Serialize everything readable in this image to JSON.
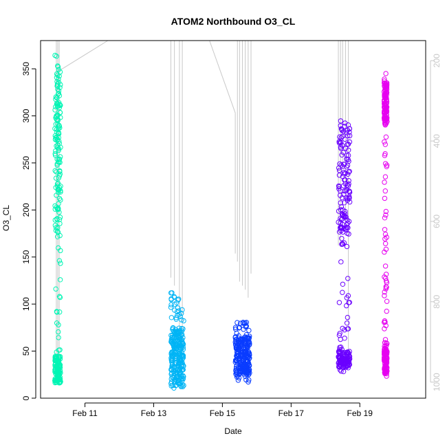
{
  "chart_data": {
    "type": "scatter",
    "title": "ATOM2 Northbound O3_CL",
    "xlabel": "Date",
    "ylabel": "O3_CL",
    "x_unit": "days",
    "xlim": [
      "2017-02-09T17:00",
      "2017-02-20T22:00"
    ],
    "ylim": [
      0,
      380
    ],
    "y_ticks": [
      0,
      50,
      100,
      150,
      200,
      250,
      300,
      350
    ],
    "x_ticks": [
      {
        "date": "2017-02-11T00:00",
        "label": "Feb 11"
      },
      {
        "date": "2017-02-13T00:00",
        "label": "Feb 13"
      },
      {
        "date": "2017-02-15T00:00",
        "label": "Feb 15"
      },
      {
        "date": "2017-02-17T00:00",
        "label": "Feb 17"
      },
      {
        "date": "2017-02-19T00:00",
        "label": "Feb 19"
      }
    ],
    "secondary_y": {
      "side": "right",
      "reversed": true,
      "lim": [
        1040,
        150
      ],
      "ticks": [
        200,
        400,
        600,
        800,
        1000
      ],
      "color": "#c8c8c8"
    },
    "grid": false,
    "series": [
      {
        "color": "#00f5b4",
        "x_range": [
          "2017-02-10T03:00",
          "2017-02-10T07:00"
        ],
        "y_range": [
          12,
          365
        ],
        "dense": [
          [
            16,
            45
          ],
          [
            170,
            350
          ]
        ]
      },
      {
        "color": "#00b4f5",
        "x_range": [
          "2017-02-13T12:00",
          "2017-02-13T21:00"
        ],
        "y_range": [
          10,
          113
        ],
        "dense": [
          [
            12,
            75
          ]
        ]
      },
      {
        "color": "#0a3cff",
        "x_range": [
          "2017-02-15T09:00",
          "2017-02-15T19:00"
        ],
        "y_range": [
          17,
          81
        ],
        "dense": [
          [
            25,
            65
          ]
        ]
      },
      {
        "color": "#6a00ff",
        "x_range": [
          "2017-02-18T09:00",
          "2017-02-18T17:00"
        ],
        "y_range": [
          18,
          297
        ],
        "dense": [
          [
            32,
            50
          ],
          [
            175,
            295
          ]
        ]
      },
      {
        "color": "#e600f0",
        "x_range": [
          "2017-02-19T17:00",
          "2017-02-19T19:00"
        ],
        "y_range": [
          20,
          360
        ],
        "dense": [
          [
            25,
            60
          ],
          [
            290,
            335
          ]
        ]
      }
    ],
    "profile_lines": {
      "color": "#c8c8c8",
      "axis": "secondary_y",
      "segments": [
        {
          "x": "2017-02-10T04:00",
          "y_from": 150,
          "y_to": 1000
        },
        {
          "x": "2017-02-10T05:00",
          "y_from": 150,
          "y_to": 980
        },
        {
          "x": "2017-02-10T06:00",
          "y_from": 150,
          "y_to": 1000
        },
        {
          "x": "2017-02-13T12:00",
          "y_from": 150,
          "y_to": 740
        },
        {
          "x": "2017-02-13T14:30",
          "y_from": 150,
          "y_to": 760
        },
        {
          "x": "2017-02-13T18:00",
          "y_from": 150,
          "y_to": 880
        },
        {
          "x": "2017-02-13T20:00",
          "y_from": 150,
          "y_to": 920
        },
        {
          "x": "2017-02-15T09:00",
          "y_from": 330,
          "y_to": 680
        },
        {
          "x": "2017-02-15T10:30",
          "y_from": 150,
          "y_to": 700
        },
        {
          "x": "2017-02-15T12:00",
          "y_from": 150,
          "y_to": 750
        },
        {
          "x": "2017-02-15T14:00",
          "y_from": 150,
          "y_to": 760
        },
        {
          "x": "2017-02-15T16:00",
          "y_from": 150,
          "y_to": 770
        },
        {
          "x": "2017-02-15T18:00",
          "y_from": 150,
          "y_to": 790
        },
        {
          "x": "2017-02-15T20:00",
          "y_from": 150,
          "y_to": 730
        },
        {
          "x": "2017-02-18T09:00",
          "y_from": 150,
          "y_to": 660
        },
        {
          "x": "2017-02-18T10:30",
          "y_from": 150,
          "y_to": 660
        },
        {
          "x": "2017-02-18T12:00",
          "y_from": 150,
          "y_to": 470
        },
        {
          "x": "2017-02-18T14:00",
          "y_from": 150,
          "y_to": 620
        },
        {
          "x": "2017-02-18T16:00",
          "y_from": 150,
          "y_to": 920
        }
      ],
      "connectors": [
        [
          {
            "x": "2017-02-10T06:00",
            "y": 225
          },
          {
            "x": "2017-02-11T16:00",
            "y": 150
          }
        ],
        [
          {
            "x": "2017-02-14T15:00",
            "y": 150
          },
          {
            "x": "2017-02-15T09:00",
            "y": 330
          }
        ]
      ]
    }
  }
}
